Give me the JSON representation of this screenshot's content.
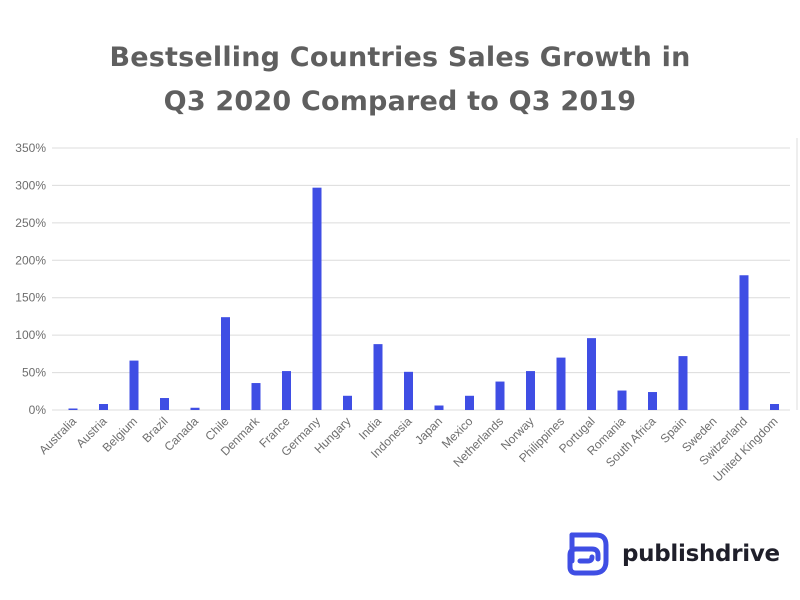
{
  "title_line1": "Bestselling Countries Sales Growth in",
  "title_line2": "Q3 2020 Compared to Q3 2019",
  "brand": {
    "name": "publishdrive"
  },
  "colors": {
    "bar": "#3f4ee4",
    "title": "#5f5f5f",
    "axis_text": "#6e6e6e",
    "grid": "#dcdcdc",
    "logo": "#3f4ee4"
  },
  "chart_data": {
    "type": "bar",
    "title": "Bestselling Countries Sales Growth in Q3 2020 Compared to Q3 2019",
    "xlabel": "",
    "ylabel": "",
    "ylim": [
      0,
      350
    ],
    "yticks": [
      0,
      50,
      100,
      150,
      200,
      250,
      300,
      350
    ],
    "ytick_labels": [
      "0%",
      "50%",
      "100%",
      "150%",
      "200%",
      "250%",
      "300%",
      "350%"
    ],
    "grid": true,
    "legend": "none",
    "categories": [
      "Australia",
      "Austria",
      "Belgium",
      "Brazil",
      "Canada",
      "Chile",
      "Denmark",
      "France",
      "Germany",
      "Hungary",
      "India",
      "Indonesia",
      "Japan",
      "Mexico",
      "Netherlands",
      "Norway",
      "Philippines",
      "Portugal",
      "Romania",
      "South Africa",
      "Spain",
      "Sweden",
      "Switzerland",
      "United Kingdom"
    ],
    "values": [
      2,
      8,
      66,
      16,
      3,
      124,
      36,
      52,
      297,
      19,
      88,
      51,
      6,
      19,
      38,
      52,
      70,
      96,
      26,
      24,
      72,
      0,
      180,
      8
    ]
  }
}
